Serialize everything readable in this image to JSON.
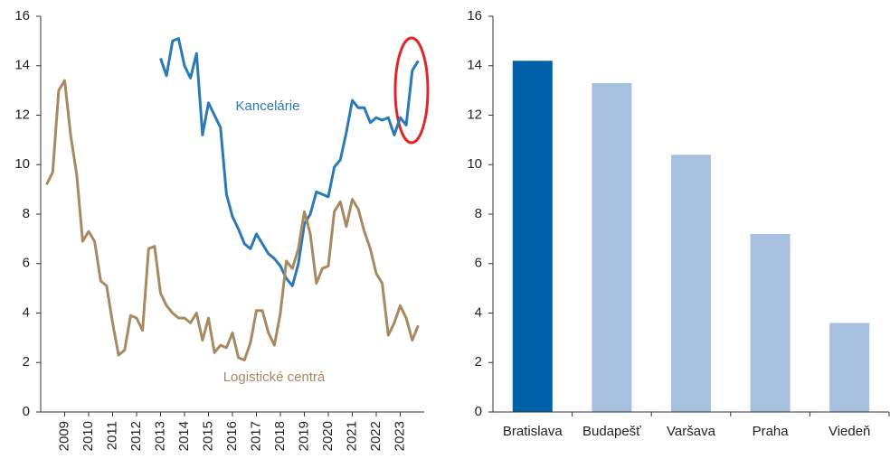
{
  "chart_data": [
    {
      "type": "line",
      "xlim": [
        2008,
        2024
      ],
      "xticks": [
        2009,
        2010,
        2011,
        2012,
        2013,
        2014,
        2015,
        2016,
        2017,
        2018,
        2019,
        2020,
        2021,
        2022,
        2023
      ],
      "ylim": [
        0,
        16
      ],
      "yticks": [
        0,
        2,
        4,
        6,
        8,
        10,
        12,
        14,
        16
      ],
      "series": [
        {
          "name": "Kancelárie",
          "color": "#2a7ab8",
          "x": [
            2013,
            2013.25,
            2013.5,
            2013.75,
            2014,
            2014.25,
            2014.5,
            2014.75,
            2015,
            2015.25,
            2015.5,
            2015.75,
            2016,
            2016.25,
            2016.5,
            2016.75,
            2017,
            2017.25,
            2017.5,
            2017.75,
            2018,
            2018.25,
            2018.5,
            2018.75,
            2019,
            2019.25,
            2019.5,
            2019.75,
            2020,
            2020.25,
            2020.5,
            2020.75,
            2021,
            2021.25,
            2021.5,
            2021.75,
            2022,
            2022.25,
            2022.5,
            2022.75,
            2023,
            2023.25,
            2023.5,
            2023.75
          ],
          "values": [
            14.3,
            13.6,
            15.0,
            15.1,
            14.0,
            13.5,
            14.5,
            11.2,
            12.5,
            12.0,
            11.5,
            8.8,
            7.9,
            7.4,
            6.8,
            6.6,
            7.2,
            6.8,
            6.4,
            6.2,
            5.9,
            5.4,
            5.1,
            6.0,
            7.6,
            8.0,
            8.9,
            8.8,
            8.7,
            9.9,
            10.2,
            11.3,
            12.6,
            12.3,
            12.3,
            11.7,
            11.9,
            11.8,
            11.9,
            11.2,
            11.9,
            11.6,
            13.8,
            14.2
          ]
        },
        {
          "name": "Logistické centrá",
          "color": "#a88a62",
          "x": [
            2008.25,
            2008.5,
            2008.75,
            2009,
            2009.25,
            2009.5,
            2009.75,
            2010,
            2010.25,
            2010.5,
            2010.75,
            2011,
            2011.25,
            2011.5,
            2011.75,
            2012,
            2012.25,
            2012.5,
            2012.75,
            2013,
            2013.25,
            2013.5,
            2013.75,
            2014,
            2014.25,
            2014.5,
            2014.75,
            2015,
            2015.25,
            2015.5,
            2015.75,
            2016,
            2016.25,
            2016.5,
            2016.75,
            2017,
            2017.25,
            2017.5,
            2017.75,
            2018,
            2018.25,
            2018.5,
            2018.75,
            2019,
            2019.25,
            2019.5,
            2019.75,
            2020,
            2020.25,
            2020.5,
            2020.75,
            2021,
            2021.25,
            2021.5,
            2021.75,
            2022,
            2022.25,
            2022.5,
            2022.75,
            2023,
            2023.25,
            2023.5,
            2023.75
          ],
          "values": [
            9.2,
            9.7,
            13.0,
            13.4,
            11.2,
            9.6,
            6.9,
            7.3,
            6.9,
            5.3,
            5.1,
            3.6,
            2.3,
            2.5,
            3.9,
            3.8,
            3.3,
            6.6,
            6.7,
            4.8,
            4.3,
            4.0,
            3.8,
            3.8,
            3.6,
            4.0,
            2.9,
            3.8,
            2.4,
            2.7,
            2.6,
            3.2,
            2.2,
            2.1,
            2.8,
            4.1,
            4.1,
            3.2,
            2.7,
            4.0,
            6.1,
            5.8,
            6.6,
            8.1,
            7.2,
            5.2,
            5.8,
            5.9,
            8.1,
            8.5,
            7.5,
            8.6,
            8.2,
            7.3,
            6.6,
            5.6,
            5.2,
            3.1,
            3.6,
            4.3,
            3.8,
            2.9,
            3.5
          ]
        }
      ]
    },
    {
      "type": "bar",
      "categories": [
        "Bratislava",
        "Budapešť",
        "Varšava",
        "Praha",
        "Viedeň"
      ],
      "values": [
        14.2,
        13.3,
        10.4,
        7.2,
        3.6
      ],
      "colors": [
        "#0060a8",
        "#a7c0e0",
        "#a7c0e0",
        "#a7c0e0",
        "#a7c0e0"
      ],
      "ylim": [
        0,
        16
      ],
      "yticks": [
        0,
        2,
        4,
        6,
        8,
        10,
        12,
        14,
        16
      ]
    }
  ]
}
